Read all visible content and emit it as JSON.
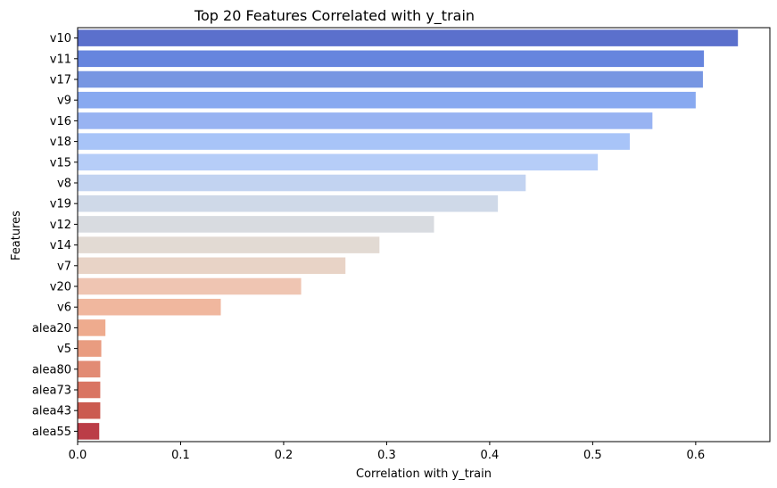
{
  "chart_data": {
    "type": "bar",
    "orientation": "horizontal",
    "title": "Top 20 Features Correlated with y_train",
    "xlabel": "Correlation with y_train",
    "ylabel": "Features",
    "xlim": [
      0,
      0.672
    ],
    "x_ticks": [
      "0.0",
      "0.1",
      "0.2",
      "0.3",
      "0.4",
      "0.5",
      "0.6"
    ],
    "x_tick_values": [
      0.0,
      0.1,
      0.2,
      0.3,
      0.4,
      0.5,
      0.6
    ],
    "grid": false,
    "palette": "coolwarm",
    "categories": [
      "v10",
      "v11",
      "v17",
      "v9",
      "v16",
      "v18",
      "v15",
      "v8",
      "v19",
      "v12",
      "v14",
      "v7",
      "v20",
      "v6",
      "alea20",
      "v5",
      "alea80",
      "alea73",
      "alea43",
      "alea55"
    ],
    "values": [
      0.641,
      0.608,
      0.607,
      0.6,
      0.558,
      0.536,
      0.505,
      0.435,
      0.408,
      0.346,
      0.293,
      0.26,
      0.217,
      0.139,
      0.027,
      0.023,
      0.022,
      0.022,
      0.022,
      0.021
    ],
    "colors": [
      "#5b70cc",
      "#6685de",
      "#7796e2",
      "#88a9f0",
      "#98b3f2",
      "#a8c4f8",
      "#b6cdf8",
      "#c2d3f1",
      "#cfd9e8",
      "#d8dbe0",
      "#e2dad3",
      "#e8d3c6",
      "#efc5b2",
      "#f0b79e",
      "#eeab8e",
      "#e99c80",
      "#e28b74",
      "#d97462",
      "#cb5b50",
      "#bb3d47"
    ]
  }
}
